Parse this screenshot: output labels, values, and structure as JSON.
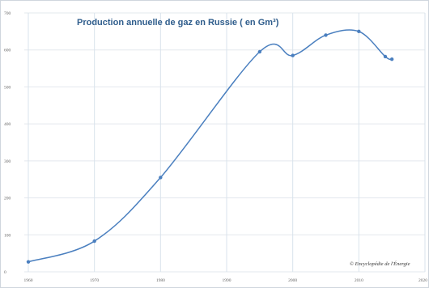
{
  "chart_data": {
    "type": "line",
    "title": "Production annuelle de gaz en Russie ( en Gm³)",
    "credit": "© Encyclopédie de l'Énergie",
    "x_tick_labels": [
      "1960",
      "1970",
      "1980",
      "1990",
      "2000",
      "2010",
      "2020"
    ],
    "y_tick_labels": [
      "0",
      "100",
      "200",
      "300",
      "400",
      "500",
      "600",
      "700"
    ],
    "xlim": [
      1960,
      2020
    ],
    "ylim": [
      0,
      700
    ],
    "grid": true,
    "series": [
      {
        "color": "#4a7fbf",
        "smooth": true,
        "points": [
          {
            "x": 1960,
            "y": 27
          },
          {
            "x": 1970,
            "y": 83
          },
          {
            "x": 1980,
            "y": 255
          },
          {
            "x": 1995,
            "y": 595
          },
          {
            "x": 2000,
            "y": 585
          },
          {
            "x": 2005,
            "y": 640
          },
          {
            "x": 2010,
            "y": 650
          },
          {
            "x": 2014,
            "y": 582
          },
          {
            "x": 2015,
            "y": 575
          }
        ]
      }
    ]
  }
}
